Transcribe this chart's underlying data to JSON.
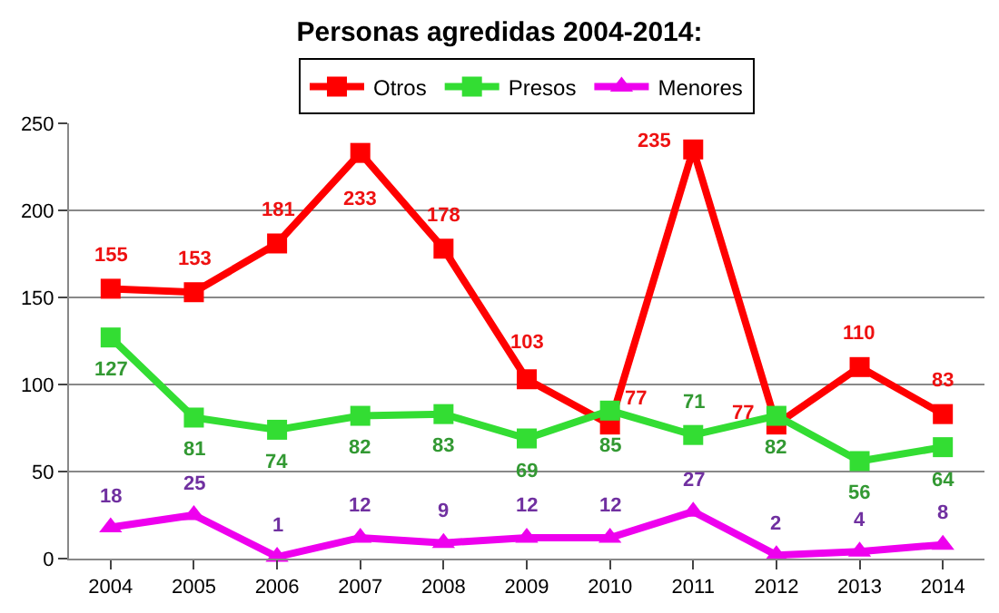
{
  "chart_data": {
    "type": "line",
    "title": "Personas agredidas 2004-2014:",
    "categories": [
      "2004",
      "2005",
      "2006",
      "2007",
      "2008",
      "2009",
      "2010",
      "2011",
      "2012",
      "2013",
      "2014"
    ],
    "series": [
      {
        "name": "Otros",
        "color": "#ff0000",
        "marker": "square",
        "values": [
          155,
          153,
          181,
          233,
          178,
          103,
          77,
          235,
          77,
          110,
          83
        ]
      },
      {
        "name": "Presos",
        "color": "#33dd33",
        "marker": "square",
        "values": [
          127,
          81,
          74,
          82,
          83,
          69,
          85,
          71,
          82,
          56,
          64
        ]
      },
      {
        "name": "Menores",
        "color": "#ee00ee",
        "marker": "triangle",
        "values": [
          18,
          25,
          1,
          12,
          9,
          12,
          12,
          27,
          2,
          4,
          8
        ]
      }
    ],
    "ylim": [
      0,
      250
    ],
    "yticks": [
      0,
      50,
      100,
      150,
      200,
      250
    ],
    "grid": "y",
    "legend": "top",
    "data_labels": true
  }
}
